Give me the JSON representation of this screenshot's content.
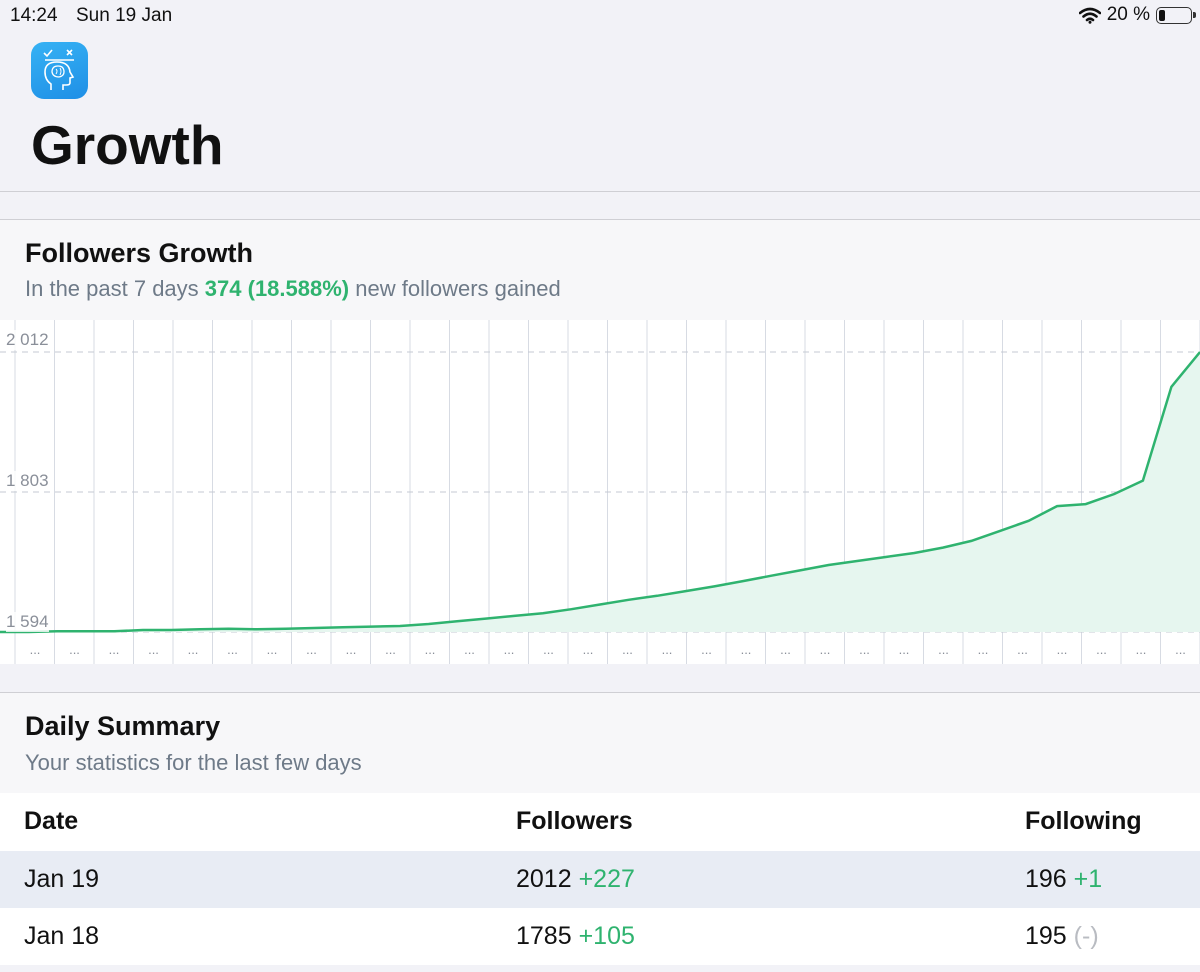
{
  "status_bar": {
    "time": "14:24",
    "date": "Sun 19 Jan",
    "battery_text": "20 %",
    "battery_level": 0.2,
    "icons": [
      "wifi-icon",
      "battery-icon"
    ]
  },
  "app_icon": "brain-head-icon",
  "page_title": "Growth",
  "followers_growth": {
    "title": "Followers Growth",
    "subtitle_prefix": "In the past 7 days",
    "subtitle_highlight": "374 (18.588%)",
    "subtitle_suffix": "new followers gained"
  },
  "chart_data": {
    "type": "area",
    "yticks": [
      "2 012",
      "1 803",
      "1 594"
    ],
    "ylim": [
      1594,
      2012
    ],
    "xtick_label": "...",
    "x_ticks_count": 30,
    "series": [
      {
        "color": "#2fb36f",
        "values": [
          1594,
          1594,
          1595,
          1595,
          1595,
          1597,
          1597,
          1598,
          1599,
          1598,
          1599,
          1600,
          1601,
          1602,
          1603,
          1606,
          1610,
          1614,
          1618,
          1622,
          1628,
          1635,
          1642,
          1648,
          1655,
          1662,
          1670,
          1678,
          1686,
          1694,
          1700,
          1706,
          1712,
          1720,
          1730,
          1745,
          1760,
          1782,
          1785,
          1800,
          1820,
          1960,
          2012
        ]
      }
    ],
    "colors": {
      "line": "#2fb36f",
      "fill": "#e6f6ef",
      "grid": "#d7dbe3"
    }
  },
  "daily_summary": {
    "title": "Daily Summary",
    "subtitle": "Your statistics for the last few days",
    "columns": [
      "Date",
      "Followers",
      "Following"
    ],
    "rows": [
      {
        "date": "Jan 19",
        "followers": "2012",
        "followers_delta": "+227",
        "following": "196",
        "following_delta": "+1"
      },
      {
        "date": "Jan 18",
        "followers": "1785",
        "followers_delta": "+105",
        "following": "195",
        "following_delta": "(-)"
      }
    ]
  }
}
